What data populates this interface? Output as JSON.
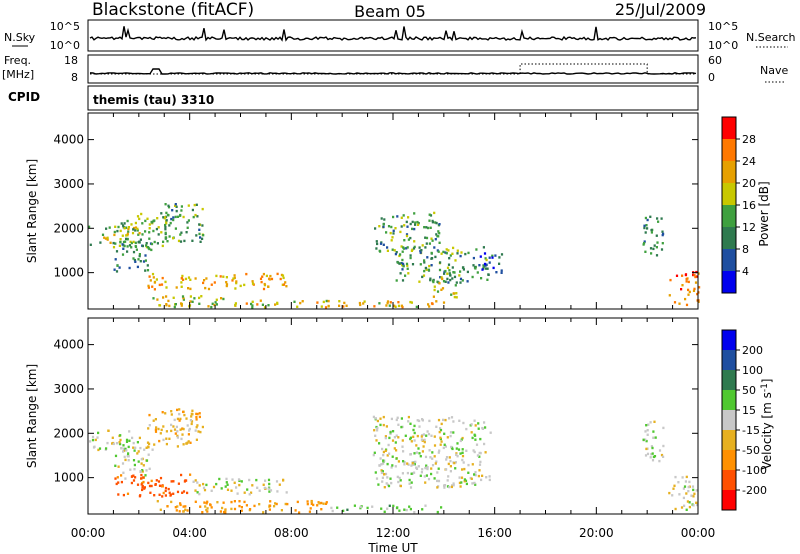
{
  "header": {
    "station": "Blackstone (fitACF)",
    "beam": "Beam 05",
    "date": "25/Jul/2009"
  },
  "params": {
    "nsky_label": "N.Sky",
    "nsky_ticks": [
      "10^5",
      "10^0"
    ],
    "nsearch_label": "N.Search",
    "freq_label": "Freq.",
    "freq_unit": "[MHz]",
    "freq_ticks": [
      "18",
      "8"
    ],
    "nave_ticks": [
      "60",
      "0"
    ],
    "nave_label": "Nave",
    "cpid_label": "CPID",
    "cpid_value": "themis (tau) 3310"
  },
  "colors": {
    "power": [
      "#0000ee",
      "#1f4fa0",
      "#2f7a4f",
      "#3fa03f",
      "#c8c800",
      "#e6a000",
      "#ff7800",
      "#ff0000"
    ],
    "velocity": [
      "#ff0000",
      "#ff5000",
      "#ff9000",
      "#e6b020",
      "#c8c8c8",
      "#50c830",
      "#2f7a4f",
      "#1f4fa0",
      "#0000ee"
    ],
    "ground": "#b4b4b4"
  },
  "chart_data": [
    {
      "type": "heatmap",
      "name": "power",
      "ylabel": "Slant Range [km]",
      "yticks": [
        "1000",
        "2000",
        "3000",
        "4000"
      ],
      "ylim": [
        180,
        4600
      ],
      "xlim_hours": [
        0,
        24
      ],
      "colorbar": {
        "label": "Power [dB]",
        "ticks": [
          "4",
          "8",
          "12",
          "16",
          "20",
          "24",
          "28"
        ],
        "range": [
          0,
          32
        ]
      },
      "patches": [
        {
          "t": [
            0.0,
            2.0
          ],
          "r": [
            1600,
            2100
          ],
          "v": 16
        },
        {
          "t": [
            1.0,
            2.5
          ],
          "r": [
            1000,
            1700
          ],
          "v": 10
        },
        {
          "t": [
            2.3,
            7.8
          ],
          "r": [
            650,
            1000
          ],
          "v": 22
        },
        {
          "t": [
            1.2,
            3.2
          ],
          "r": [
            1600,
            2400
          ],
          "v": 14
        },
        {
          "t": [
            3.0,
            4.5
          ],
          "r": [
            1700,
            2600
          ],
          "v": 12
        },
        {
          "t": [
            2.5,
            5.5
          ],
          "r": [
            230,
            500
          ],
          "v": 18
        },
        {
          "t": [
            5.5,
            14.0
          ],
          "r": [
            230,
            400
          ],
          "v": 20
        },
        {
          "t": [
            11.2,
            13.8
          ],
          "r": [
            1500,
            2400
          ],
          "v": 12
        },
        {
          "t": [
            12.0,
            15.8
          ],
          "r": [
            800,
            1600
          ],
          "v": 12
        },
        {
          "t": [
            13.5,
            14.5
          ],
          "r": [
            450,
            1000
          ],
          "v": 18
        },
        {
          "t": [
            15.3,
            16.3
          ],
          "r": [
            1000,
            1500
          ],
          "v": 8
        },
        {
          "t": [
            22.8,
            24.0
          ],
          "r": [
            300,
            1050
          ],
          "v": 26
        },
        {
          "t": [
            21.8,
            22.6
          ],
          "r": [
            1400,
            2300
          ],
          "v": 10
        }
      ]
    },
    {
      "type": "heatmap",
      "name": "velocity",
      "ylabel": "Slant Range [km]",
      "yticks": [
        "1000",
        "2000",
        "3000",
        "4000"
      ],
      "ylim": [
        180,
        4600
      ],
      "xlim_hours": [
        0,
        24
      ],
      "xlabel": "Time UT",
      "xticks": [
        "00:00",
        "04:00",
        "08:00",
        "12:00",
        "16:00",
        "20:00",
        "00:00"
      ],
      "colorbar": {
        "label": "Velocity [m s",
        "label_sup": "-1",
        "ticks": [
          "-200",
          "-100",
          "-50",
          "-15",
          "15",
          "50",
          "100",
          "200"
        ],
        "range": [
          -250,
          250
        ]
      },
      "patches": [
        {
          "t": [
            0.0,
            2.0
          ],
          "r": [
            1600,
            2100
          ],
          "v": 0
        },
        {
          "t": [
            1.0,
            2.5
          ],
          "r": [
            1000,
            1700
          ],
          "v": 0
        },
        {
          "t": [
            1.0,
            4.0
          ],
          "r": [
            600,
            1100
          ],
          "v": -120
        },
        {
          "t": [
            4.0,
            7.8
          ],
          "r": [
            650,
            1000
          ],
          "v": 0
        },
        {
          "t": [
            2.3,
            4.5
          ],
          "r": [
            1700,
            2600
          ],
          "v": -30
        },
        {
          "t": [
            2.5,
            9.5
          ],
          "r": [
            230,
            500
          ],
          "v": -60
        },
        {
          "t": [
            9.5,
            14.0
          ],
          "r": [
            230,
            400
          ],
          "v": 30
        },
        {
          "t": [
            11.2,
            15.8
          ],
          "r": [
            800,
            2400
          ],
          "v": 0
        },
        {
          "t": [
            22.8,
            24.0
          ],
          "r": [
            300,
            1050
          ],
          "v": 0
        },
        {
          "t": [
            21.8,
            22.6
          ],
          "r": [
            1400,
            2300
          ],
          "v": 0
        }
      ]
    }
  ]
}
